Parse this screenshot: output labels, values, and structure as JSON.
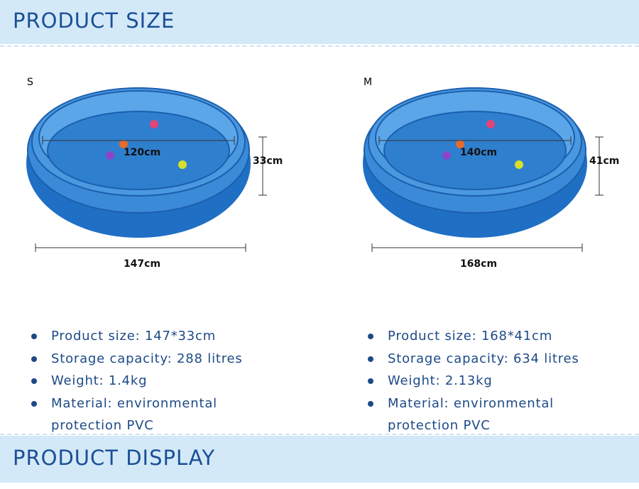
{
  "header": {
    "title": "PRODUCT SIZE"
  },
  "products": [
    {
      "label": "S",
      "inner_diameter": "120cm",
      "height": "33cm",
      "outer_diameter": "147cm",
      "specs": [
        "Product size: 147*33cm",
        "Storage capacity: 288 litres",
        "Weight: 1.4kg",
        "Material: environmental protection PVC"
      ]
    },
    {
      "label": "M",
      "inner_diameter": "140cm",
      "height": "41cm",
      "outer_diameter": "168cm",
      "specs": [
        "Product size: 168*41cm",
        "Storage capacity: 634 litres",
        "Weight: 2.13kg",
        "Material: environmental protection PVC"
      ]
    }
  ],
  "footer": {
    "title": "PRODUCT DISPLAY"
  }
}
